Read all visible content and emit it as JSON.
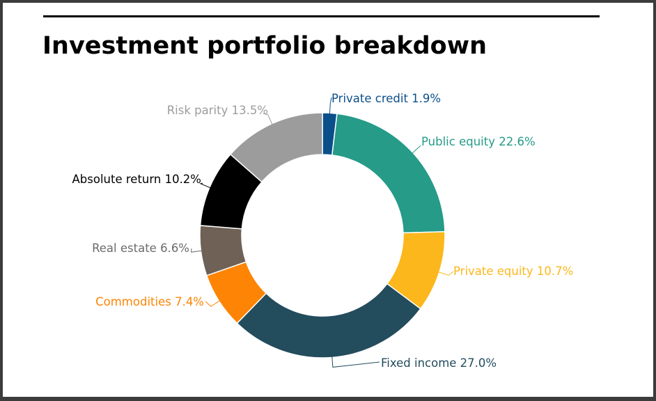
{
  "chart_data": {
    "type": "pie",
    "style": "donut",
    "title": "Investment portfolio breakdown",
    "categories": [
      "Private credit",
      "Public equity",
      "Private equity",
      "Fixed income",
      "Commodities",
      "Real estate",
      "Absolute return",
      "Risk parity"
    ],
    "values": [
      1.9,
      22.6,
      10.7,
      27.0,
      7.4,
      6.6,
      10.2,
      13.5
    ],
    "labels": [
      "Private credit 1.9%",
      "Public equity 22.6%",
      "Private equity 10.7%",
      "Fixed income 27.0%",
      "Commodities 7.4%",
      "Real estate 6.6%",
      "Absolute return 10.2%",
      "Risk parity 13.5%"
    ],
    "colors": [
      "#0b4f8a",
      "#259b88",
      "#fcb71c",
      "#234c5d",
      "#fd8404",
      "#6f6155",
      "#000000",
      "#9c9c9c"
    ],
    "label_colors": [
      "#0b4f8a",
      "#259b88",
      "#fcb71c",
      "#234c5d",
      "#fd8404",
      "#6b6b6b",
      "#000000",
      "#9c9c9c"
    ],
    "legend": "none",
    "grid": false
  }
}
